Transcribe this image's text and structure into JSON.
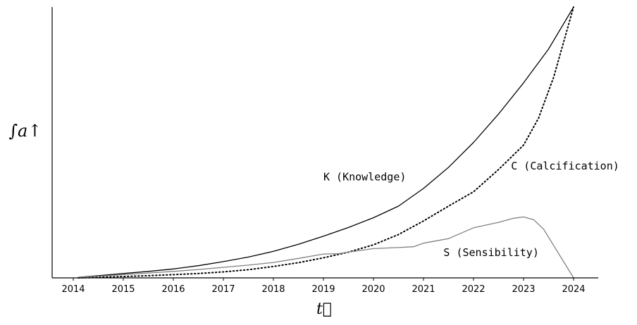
{
  "chart_data": {
    "type": "line",
    "title": "",
    "xlabel": "t⃗",
    "ylabel": "∫a↑",
    "x_ticks": [
      "2014",
      "2015",
      "2016",
      "2017",
      "2018",
      "2019",
      "2020",
      "2021",
      "2022",
      "2023",
      "2024"
    ],
    "xlim": [
      2013.6,
      2024.5
    ],
    "ylim": [
      0,
      1.0
    ],
    "y_ticks_shown": false,
    "grid": false,
    "legend": "none",
    "series": [
      {
        "name": "K (Knowledge)",
        "style": "solid",
        "color": "#000000",
        "x": [
          2014.1,
          2014.5,
          2015,
          2015.5,
          2016,
          2016.5,
          2017,
          2017.5,
          2018,
          2018.5,
          2019,
          2019.5,
          2020,
          2020.5,
          2021,
          2021.5,
          2022,
          2022.5,
          2023,
          2023.5,
          2024
        ],
        "values": [
          0.002,
          0.008,
          0.016,
          0.024,
          0.033,
          0.045,
          0.06,
          0.077,
          0.098,
          0.124,
          0.154,
          0.186,
          0.222,
          0.265,
          0.33,
          0.408,
          0.5,
          0.605,
          0.72,
          0.845,
          1.0
        ]
      },
      {
        "name": "C (Calcification)",
        "style": "dotted",
        "color": "#000000",
        "x": [
          2014.1,
          2014.5,
          2015,
          2015.5,
          2016,
          2016.5,
          2017,
          2017.5,
          2018,
          2018.5,
          2019,
          2019.5,
          2020,
          2020.5,
          2021,
          2021.5,
          2022,
          2022.5,
          2023,
          2023.3,
          2023.6,
          2023.8,
          2024
        ],
        "values": [
          0.0,
          0.002,
          0.005,
          0.008,
          0.012,
          0.016,
          0.022,
          0.03,
          0.042,
          0.056,
          0.074,
          0.095,
          0.122,
          0.16,
          0.21,
          0.265,
          0.318,
          0.4,
          0.49,
          0.59,
          0.74,
          0.87,
          1.0
        ]
      },
      {
        "name": "S (Sensibility)",
        "style": "solid",
        "color": "#808080",
        "x": [
          2014.1,
          2014.5,
          2015,
          2015.5,
          2016,
          2016.5,
          2017,
          2017.5,
          2018,
          2018.5,
          2019,
          2019.3,
          2019.5,
          2020,
          2020.5,
          2020.8,
          2021,
          2021.5,
          2022,
          2022.5,
          2022.8,
          2023,
          2023.2,
          2023.4,
          2023.6,
          2023.8,
          2024
        ],
        "values": [
          0.002,
          0.006,
          0.012,
          0.018,
          0.024,
          0.031,
          0.039,
          0.047,
          0.057,
          0.072,
          0.088,
          0.089,
          0.095,
          0.108,
          0.112,
          0.115,
          0.128,
          0.145,
          0.185,
          0.205,
          0.22,
          0.225,
          0.215,
          0.18,
          0.12,
          0.06,
          0.0
        ]
      }
    ],
    "annotations": [
      {
        "text": "K (Knowledge)",
        "x": 2019.0,
        "y": 0.36,
        "anchor": "start"
      },
      {
        "text": "C (Calcification)",
        "x": 2022.75,
        "y": 0.4,
        "anchor": "start"
      },
      {
        "text": "S (Sensibility)",
        "x": 2021.4,
        "y": 0.08,
        "anchor": "start"
      }
    ]
  }
}
